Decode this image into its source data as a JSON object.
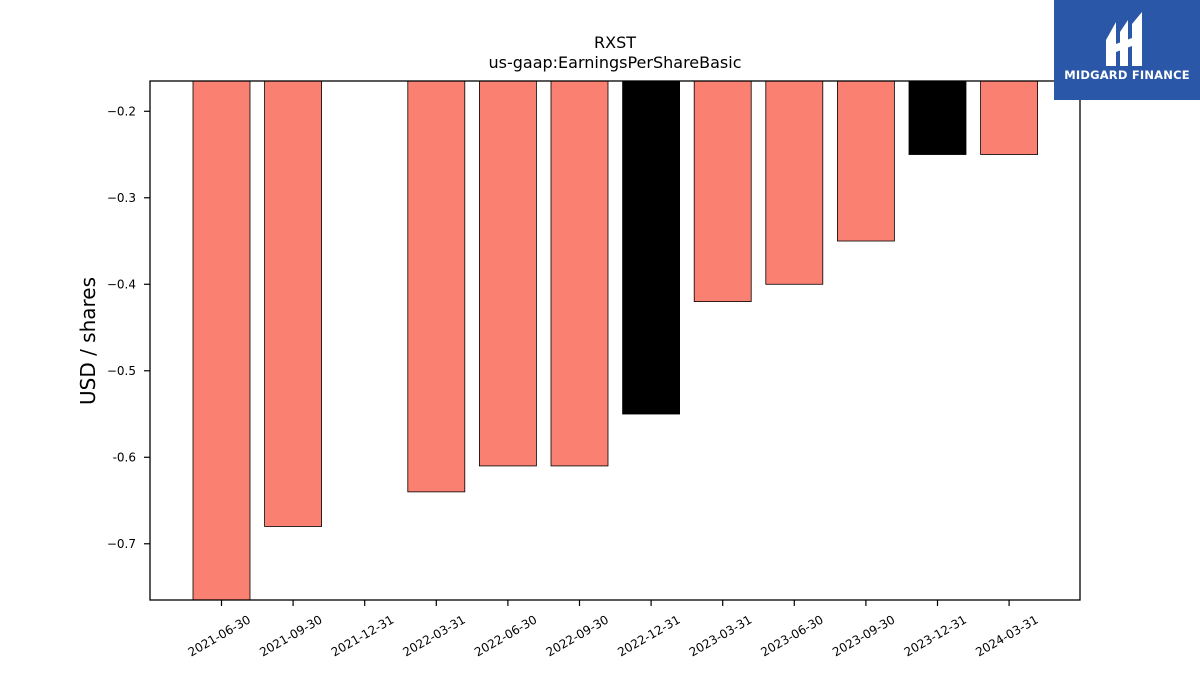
{
  "branding": {
    "logo_text": "MIDGARD FINANCE",
    "logo_color": "#2b57a8"
  },
  "chart_data": {
    "type": "bar",
    "title": "RXST",
    "subtitle": "us-gaap:EarningsPerShareBasic",
    "xlabel": "",
    "ylabel": "USD / shares",
    "ylim": [
      -0.765,
      -0.165
    ],
    "yticks": [
      -0.2,
      -0.3,
      -0.4,
      -0.5,
      -0.6,
      -0.7
    ],
    "ytick_labels": [
      "−0.2",
      "−0.3",
      "−0.4",
      "−0.5",
      "-0.6",
      "−0.7"
    ],
    "categories": [
      "2021-06-30",
      "2021-09-30",
      "2021-12-31",
      "2022-03-31",
      "2022-06-30",
      "2022-09-30",
      "2022-12-31",
      "2023-03-31",
      "2023-06-30",
      "2023-09-30",
      "2023-12-31",
      "2024-03-31"
    ],
    "values": [
      -0.77,
      -0.68,
      null,
      -0.64,
      -0.61,
      -0.61,
      -0.55,
      -0.42,
      -0.4,
      -0.35,
      -0.25,
      -0.25
    ],
    "colors": [
      "#fa8072",
      "#fa8072",
      null,
      "#fa8072",
      "#fa8072",
      "#fa8072",
      "#000000",
      "#fa8072",
      "#fa8072",
      "#fa8072",
      "#000000",
      "#fa8072"
    ],
    "grid": false,
    "legend": "none"
  }
}
